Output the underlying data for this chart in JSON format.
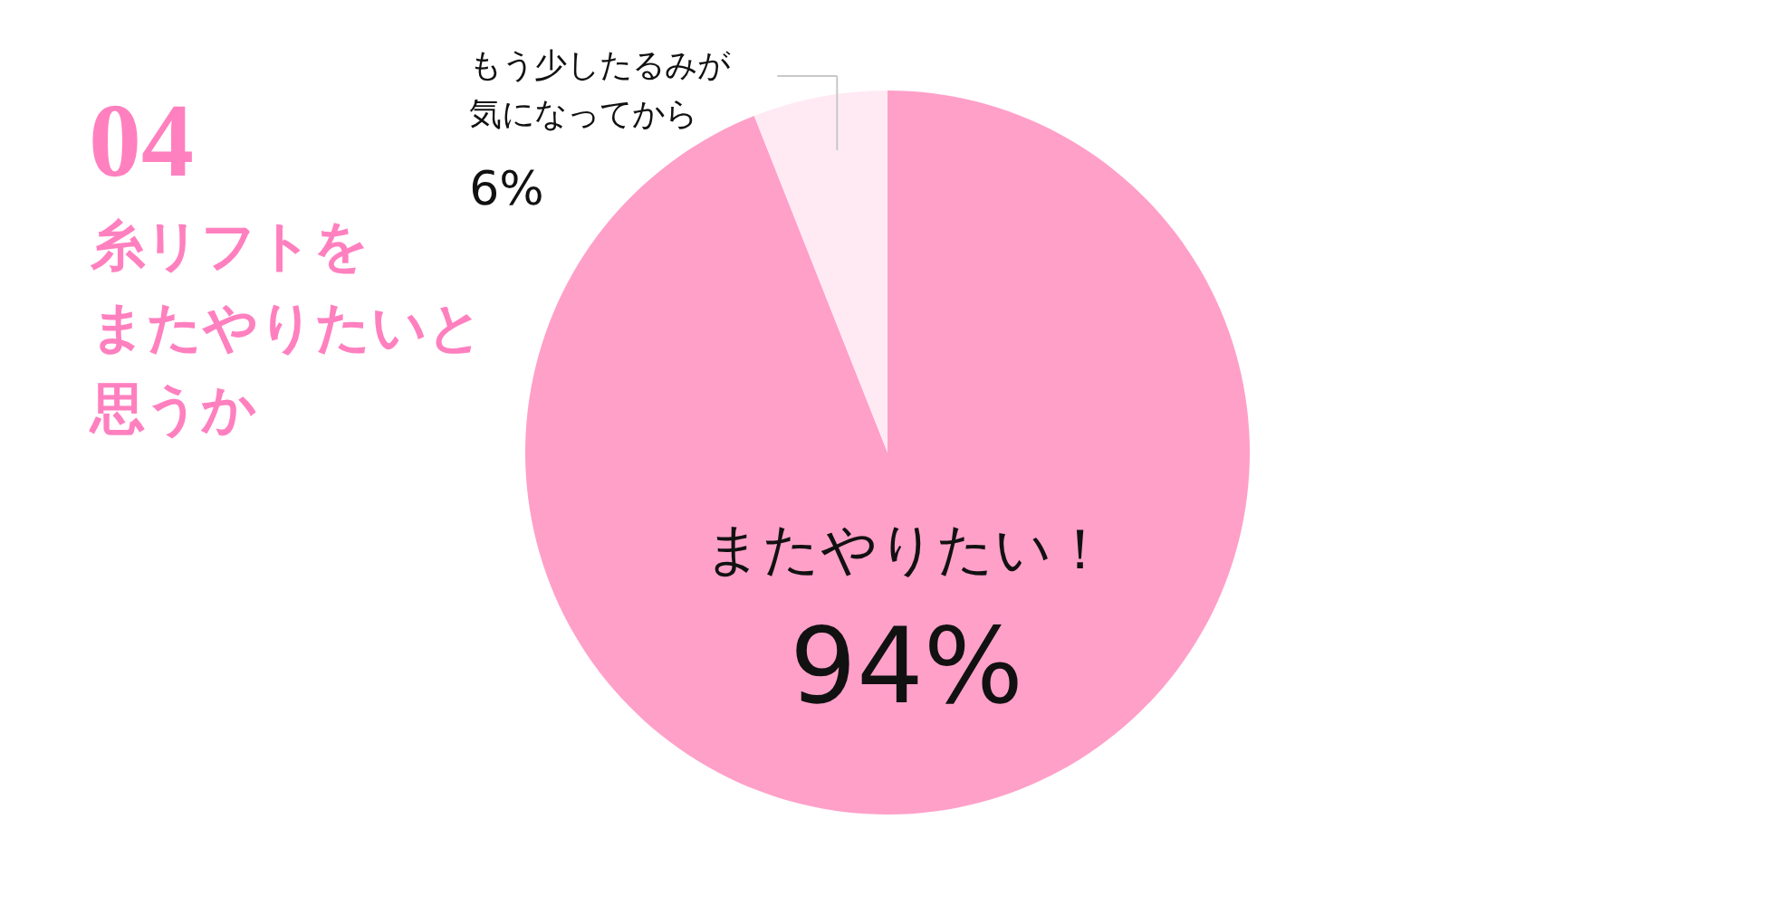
{
  "chart_data": {
    "type": "pie",
    "title": "04",
    "subtitle": "糸リフトをまたやりたいと思うか",
    "categories": [
      "またやりたい！",
      "もう少したるみが気になってから"
    ],
    "values": [
      94,
      6
    ],
    "colors": [
      "#ffa0c9",
      "#ffeaf4"
    ],
    "value_labels": [
      "94%",
      "6%"
    ]
  }
}
